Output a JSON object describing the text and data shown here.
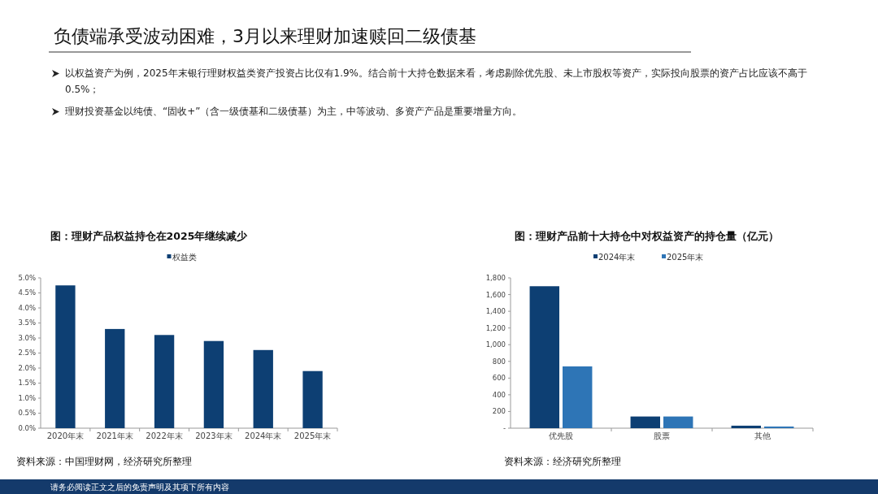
{
  "chart_data": [
    {
      "type": "other",
      "title": "负债端承受波动困难，3月以来理财加速赎回二级债基",
      "annotations": [
        "以权益资产为例，2025年末银行理财权益类资产投资占比仅有1.9%。结合前十大持仓数据来看，考虑剔除优先股、未上市股权等资产，实际投向股票的资产占比应该不高于0.5%；",
        "理财投资基金以纯债、“固收+”（含一级债基和二级债基）为主，中等波动、多资产产品是重要增量方向。",
        "请务必阅读正文之后的免责声明及其项下所有内容"
      ]
    },
    {
      "type": "bar",
      "title": "图：理财产品权益持仓在2025年继续减少",
      "categories": [
        "2020年末",
        "2021年末",
        "2022年末",
        "2023年末",
        "2024年末",
        "2025年末"
      ],
      "series": [
        {
          "name": "权益类",
          "color": "#0d3f73",
          "values": [
            4.75,
            3.3,
            3.1,
            2.9,
            2.6,
            1.9
          ]
        }
      ],
      "ylim": [
        0,
        5
      ],
      "yticks": [
        {
          "value": 0,
          "label": "0.0%"
        },
        {
          "value": 0.5,
          "label": "0.5%"
        },
        {
          "value": 1,
          "label": "1.0%"
        },
        {
          "value": 1.5,
          "label": "1.5%"
        },
        {
          "value": 2,
          "label": "2.0%"
        },
        {
          "value": 2.5,
          "label": "2.5%"
        },
        {
          "value": 3,
          "label": "3.0%"
        },
        {
          "value": 3.5,
          "label": "3.5%"
        },
        {
          "value": 4,
          "label": "4.0%"
        },
        {
          "value": 4.5,
          "label": "4.5%"
        },
        {
          "value": 5,
          "label": "5.0%"
        }
      ],
      "legend": "top",
      "annotations": [
        "资料来源：中国理财网，经济研究所整理"
      ]
    },
    {
      "type": "bar",
      "title": "图：理财产品前十大持仓中对权益资产的持仓量（亿元）",
      "categories": [
        "优先股",
        "股票",
        "其他"
      ],
      "series": [
        {
          "name": "2024年末",
          "color": "#0d3f73",
          "values": [
            1700,
            140,
            30
          ]
        },
        {
          "name": "2025年末",
          "color": "#2e75b6",
          "values": [
            740,
            140,
            20
          ]
        }
      ],
      "ylim": [
        0,
        1800
      ],
      "yticks": [
        {
          "value": 0,
          "label": "-"
        },
        200,
        400,
        600,
        800,
        {
          "value": 1000,
          "label": "1,000"
        },
        {
          "value": 1200,
          "label": "1,200"
        },
        {
          "value": 1400,
          "label": "1,400"
        },
        {
          "value": 1600,
          "label": "1,600"
        },
        {
          "value": 1800,
          "label": "1,800"
        }
      ],
      "legend": "top",
      "annotations": [
        "资料来源：经济研究所整理"
      ]
    }
  ]
}
